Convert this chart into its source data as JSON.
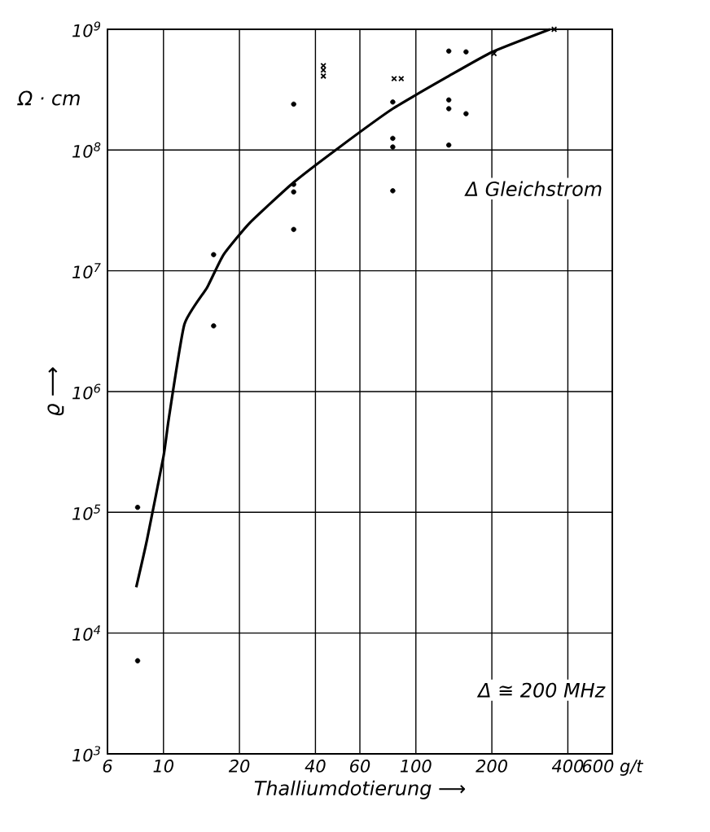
{
  "chart_data": {
    "type": "scatter",
    "xlabel": "Thalliumdotierung ⟶",
    "ylabel": "ϱ ⟶",
    "log": "xy",
    "grid": true,
    "xlim": [
      6,
      600
    ],
    "ylim": [
      1000,
      1000000000
    ],
    "xticks": [
      6,
      10,
      20,
      40,
      60,
      100,
      200,
      400,
      {
        "value": 600,
        "label": "600 g/t"
      }
    ],
    "yticks": [
      {
        "value": 1000,
        "label": "10$^{3}$"
      },
      {
        "value": 10000,
        "label": "10$^{4}$"
      },
      {
        "value": 100000,
        "label": "10$^{5}$"
      },
      {
        "value": 1000000,
        "label": "10$^{6}$"
      },
      {
        "value": 10000000,
        "label": "10$^{7}$"
      },
      {
        "value": 100000000,
        "label": "10$^{8}$"
      },
      {
        "value": 1000000000,
        "label": "10$^{9}$"
      }
    ],
    "annotations": [
      "Ω · cm",
      "Δ Gleichstrom",
      "Δ ≅ 200 MHz"
    ],
    "series": [
      {
        "type": "scatter",
        "marker": "circle",
        "color": "#000000",
        "x": [
          15.8,
          15.8,
          32.8,
          32.8,
          32.8,
          32.8,
          81,
          81,
          81,
          81,
          135,
          135,
          135,
          135,
          158,
          158,
          7.9,
          7.9
        ],
        "values": [
          13600000,
          3500000,
          240000000,
          52000000,
          45000000,
          22000000,
          250000000,
          125000000,
          106000000,
          46000000,
          660000000,
          260000000,
          220000000,
          110000000,
          650000000,
          200000000,
          110000,
          5900
        ]
      },
      {
        "type": "scatter",
        "marker": "cross",
        "color": "#000000",
        "x": [
          43,
          43,
          43,
          82,
          87.5,
          204,
          353
        ],
        "values": [
          500000000,
          460000000,
          410000000,
          390000000,
          390000000,
          630000000,
          1000000000
        ]
      },
      {
        "type": "line",
        "marker": "none",
        "line_style": "solid",
        "color": "#000000",
        "x": [
          7.8,
          8.6,
          10,
          10.5,
          12.1,
          14.9,
          17.3,
          22,
          32.8,
          49,
          81,
          135,
          201,
          340
        ],
        "values": [
          24000,
          59000,
          290000,
          600000,
          3600000,
          7300000,
          13600000,
          25000000,
          54000000,
          103000000,
          220000000,
          410000000,
          650000000,
          1000000000
        ]
      }
    ]
  }
}
